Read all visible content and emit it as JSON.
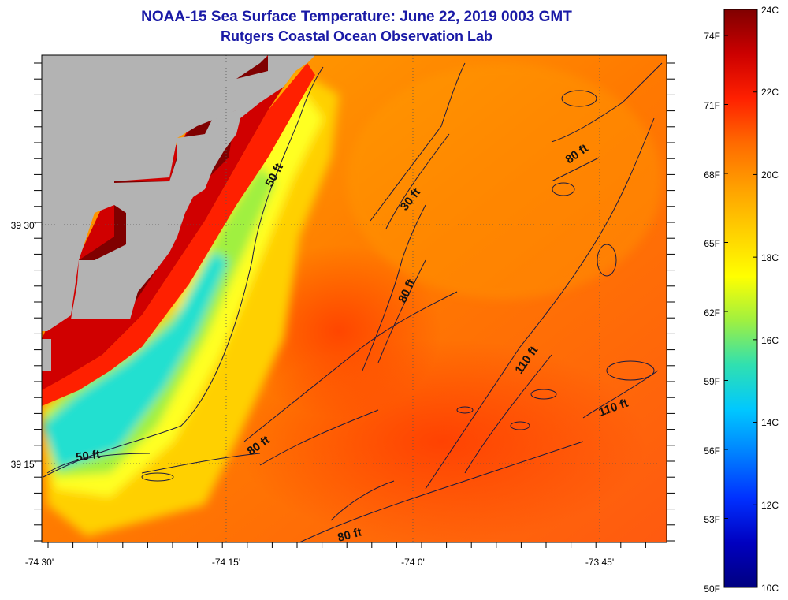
{
  "map": {
    "title": "NOAA-15 Sea Surface Temperature:  June 22, 2019 0003 GMT",
    "subtitle": "Rutgers Coastal Ocean Observation Lab",
    "lat_labels": [
      "39 30'",
      "39 15'"
    ],
    "lon_labels": [
      "-74 30'",
      "-74 15'",
      "-74 0'",
      "-73 45'"
    ],
    "contour_labels": [
      {
        "text": "50 ft",
        "rot": -62
      },
      {
        "text": "30 ft",
        "rot": -52
      },
      {
        "text": "80 ft",
        "rot": -35
      },
      {
        "text": "80 ft",
        "rot": -65
      },
      {
        "text": "110 ft",
        "rot": -55
      },
      {
        "text": "110 ft",
        "rot": -20
      },
      {
        "text": "50 ft",
        "rot": -8
      },
      {
        "text": "80 ft",
        "rot": -35
      },
      {
        "text": "80 ft",
        "rot": -15
      }
    ],
    "colors": {
      "land": "#b3b3b3",
      "contour": "#1a1a40",
      "title": "#1a1aa6"
    }
  },
  "colorbar": {
    "celsius_labels": [
      "24C",
      "22C",
      "20C",
      "18C",
      "16C",
      "14C",
      "12C",
      "10C"
    ],
    "fahrenheit_labels": [
      "74F",
      "71F",
      "68F",
      "65F",
      "62F",
      "59F",
      "56F",
      "53F",
      "50F"
    ],
    "stops": [
      "#800000",
      "#cc0000",
      "#ff2000",
      "#ff6a00",
      "#ffa000",
      "#ffd000",
      "#ffff00",
      "#a0f040",
      "#30e0b0",
      "#00c8ff",
      "#0080ff",
      "#0030ff",
      "#0000c0",
      "#000080"
    ]
  }
}
